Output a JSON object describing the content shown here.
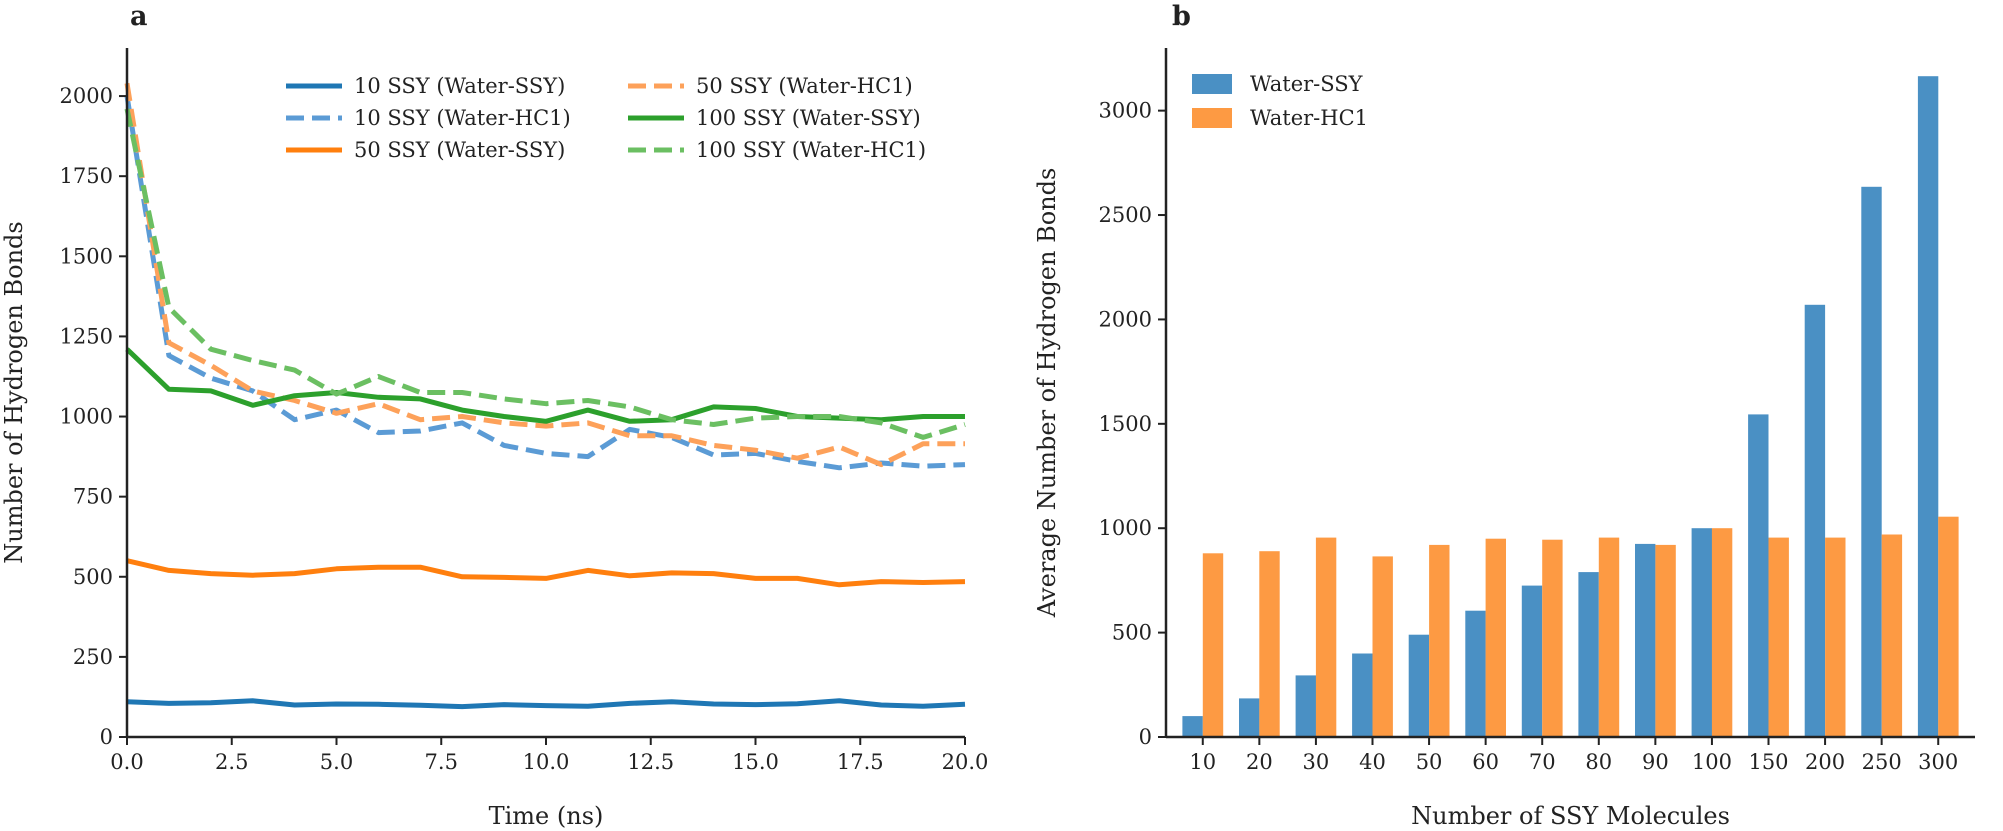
{
  "chart_data": [
    {
      "type": "line",
      "panel_label": "a",
      "title": "",
      "xlabel": "Time (ns)",
      "ylabel": "Number of Hydrogen Bonds",
      "xlim": [
        0,
        20
      ],
      "ylim": [
        0,
        2150
      ],
      "xticks": [
        0.0,
        2.5,
        5.0,
        7.5,
        10.0,
        12.5,
        15.0,
        17.5,
        20.0
      ],
      "xtick_labels": [
        "0.0",
        "2.5",
        "5.0",
        "7.5",
        "10.0",
        "12.5",
        "15.0",
        "17.5",
        "20.0"
      ],
      "yticks": [
        0,
        250,
        500,
        750,
        1000,
        1250,
        1500,
        1750,
        2000
      ],
      "ytick_labels": [
        "0",
        "250",
        "500",
        "750",
        "1000",
        "1250",
        "1500",
        "1750",
        "2000"
      ],
      "grid": false,
      "legend_position": "top-right",
      "x": [
        0,
        1,
        2,
        3,
        4,
        5,
        6,
        7,
        8,
        9,
        10,
        11,
        12,
        13,
        14,
        15,
        16,
        17,
        18,
        19,
        20
      ],
      "series": [
        {
          "name": "10 SSY (Water-SSY)",
          "color": "#1f77b4",
          "style": "solid",
          "values": [
            110,
            105,
            107,
            113,
            100,
            103,
            102,
            99,
            95,
            101,
            98,
            96,
            105,
            110,
            103,
            101,
            104,
            113,
            100,
            96,
            102
          ]
        },
        {
          "name": "10 SSY (Water-HC1)",
          "color": "#5b9bd5",
          "style": "dashed",
          "values": [
            2000,
            1190,
            1120,
            1080,
            990,
            1020,
            950,
            955,
            980,
            910,
            885,
            875,
            960,
            935,
            880,
            885,
            860,
            840,
            855,
            845,
            850
          ]
        },
        {
          "name": "50 SSY (Water-SSY)",
          "color": "#ff7f0e",
          "style": "solid",
          "values": [
            550,
            520,
            510,
            505,
            510,
            525,
            530,
            530,
            500,
            498,
            495,
            520,
            503,
            512,
            510,
            495,
            495,
            475,
            485,
            482,
            485
          ]
        },
        {
          "name": "50 SSY (Water-HC1)",
          "color": "#fda15a",
          "style": "dashed",
          "values": [
            2040,
            1230,
            1160,
            1080,
            1050,
            1010,
            1040,
            990,
            1000,
            980,
            970,
            980,
            940,
            940,
            910,
            895,
            870,
            905,
            850,
            915,
            915
          ]
        },
        {
          "name": "100 SSY (Water-SSY)",
          "color": "#2ca02c",
          "style": "solid",
          "values": [
            1210,
            1085,
            1080,
            1035,
            1065,
            1075,
            1060,
            1055,
            1020,
            1000,
            985,
            1020,
            985,
            990,
            1030,
            1025,
            1000,
            995,
            990,
            1000,
            1000
          ]
        },
        {
          "name": "100 SSY (Water-HC1)",
          "color": "#6bbf62",
          "style": "dashed",
          "values": [
            1960,
            1340,
            1210,
            1175,
            1145,
            1070,
            1125,
            1075,
            1075,
            1055,
            1040,
            1050,
            1030,
            990,
            975,
            995,
            1000,
            1000,
            980,
            935,
            975
          ]
        }
      ]
    },
    {
      "type": "bar",
      "panel_label": "b",
      "title": "",
      "xlabel": "Number of SSY Molecules",
      "ylabel": "Average Number of Hydrogen Bonds",
      "ylim": [
        0,
        3300
      ],
      "yticks": [
        0,
        500,
        1000,
        1500,
        2000,
        2500,
        3000
      ],
      "ytick_labels": [
        "0",
        "500",
        "1000",
        "1500",
        "2000",
        "2500",
        "3000"
      ],
      "grid": false,
      "legend_position": "top-left",
      "categories": [
        "10",
        "20",
        "30",
        "40",
        "50",
        "60",
        "70",
        "80",
        "90",
        "100",
        "150",
        "200",
        "250",
        "300"
      ],
      "series": [
        {
          "name": "Water-SSY",
          "color": "#4a90c4",
          "values": [
            100,
            185,
            295,
            400,
            490,
            605,
            725,
            790,
            925,
            1000,
            1545,
            2070,
            2635,
            3165
          ]
        },
        {
          "name": "Water-HC1",
          "color": "#fd9a43",
          "values": [
            880,
            890,
            955,
            865,
            920,
            950,
            945,
            955,
            920,
            1000,
            955,
            955,
            970,
            1055
          ]
        }
      ]
    }
  ]
}
